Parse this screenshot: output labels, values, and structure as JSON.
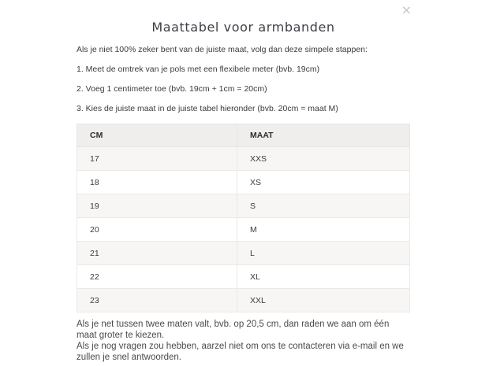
{
  "dialog": {
    "title": "Maattabel voor armbanden",
    "close_icon": "×",
    "intro": "Als je niet 100% zeker bent van de juiste maat, volg dan deze simpele stappen:",
    "steps": [
      "1. Meet de omtrek van je pols met een flexibele meter (bvb. 19cm)",
      "2. Voeg 1 centimeter toe (bvb. 19cm + 1cm = 20cm)",
      "3. Kies de juiste maat in de juiste tabel hieronder (bvb. 20cm = maat M)"
    ],
    "table": {
      "headers": [
        "CM",
        "MAAT"
      ],
      "rows": [
        [
          "17",
          "XXS"
        ],
        [
          "18",
          "XS"
        ],
        [
          "19",
          "S"
        ],
        [
          "20",
          "M"
        ],
        [
          "21",
          "L"
        ],
        [
          "22",
          "XL"
        ],
        [
          "23",
          "XXL"
        ]
      ]
    },
    "notes": [
      "Als je net tussen twee maten valt, bvb. op 20,5 cm, dan raden we aan om één maat groter te kiezen.",
      "Als je nog vragen zou hebben, aarzel niet om ons te contacteren via e-mail en we zullen je snel antwoorden."
    ],
    "colors": {
      "header_bg": "#f0eeec",
      "stripe_bg": "#f7f6f4",
      "border": "#e8e6e3",
      "text": "#3a3a3a",
      "close_icon": "#c5c5c5"
    }
  }
}
